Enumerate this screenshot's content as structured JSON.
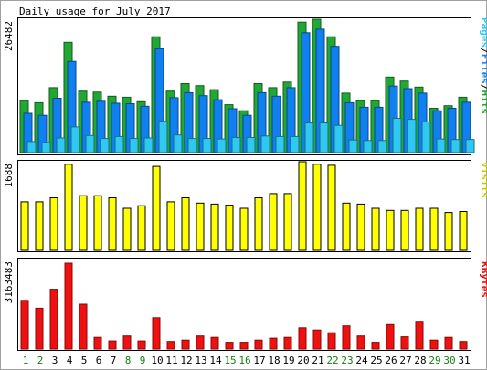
{
  "title": "Daily usage for July 2017",
  "days": [
    "1",
    "2",
    "3",
    "4",
    "5",
    "6",
    "7",
    "8",
    "9",
    "10",
    "11",
    "12",
    "13",
    "14",
    "15",
    "16",
    "17",
    "18",
    "19",
    "20",
    "21",
    "22",
    "23",
    "24",
    "25",
    "26",
    "27",
    "28",
    "29",
    "30",
    "31"
  ],
  "weekend_days": [
    "1",
    "2",
    "8",
    "9",
    "15",
    "16",
    "22",
    "23",
    "29",
    "30"
  ],
  "colors": {
    "background": "#ffffff",
    "frame": "#000000",
    "hits": "#21a834",
    "files": "#1080f0",
    "pages": "#30c8f0",
    "visits": "#ffff00",
    "kbytes": "#f01010",
    "weekday_label": "#000000",
    "weekend_label": "#108010",
    "visits_label": "#c8c800"
  },
  "chart_data": [
    {
      "type": "bar",
      "panel": "hits-files-pages",
      "ymax_label": "26482",
      "ymax": 26482,
      "side_label": [
        "Pages",
        "/",
        "Files",
        "/",
        "Hits"
      ],
      "series": [
        {
          "name": "Hits",
          "color": "#21a834",
          "values": [
            10300,
            9900,
            12900,
            21900,
            12200,
            12000,
            11200,
            11000,
            10100,
            23000,
            12200,
            13700,
            13300,
            12500,
            9500,
            8300,
            13700,
            12900,
            14000,
            25900,
            26482,
            23000,
            11800,
            10300,
            10300,
            15000,
            14200,
            13000,
            8800,
            9300,
            11000
          ]
        },
        {
          "name": "Files",
          "color": "#1080f0",
          "values": [
            7800,
            7400,
            10800,
            18100,
            10000,
            10200,
            9800,
            9700,
            9200,
            20600,
            10900,
            11900,
            11300,
            10500,
            8700,
            7400,
            11900,
            11200,
            12900,
            23800,
            24500,
            21100,
            9900,
            9000,
            9000,
            13200,
            12700,
            11800,
            8300,
            8800,
            10000
          ]
        },
        {
          "name": "Pages",
          "color": "#30c8f0",
          "values": [
            2200,
            2000,
            2900,
            5100,
            3400,
            2800,
            3200,
            2800,
            2900,
            6200,
            3500,
            2800,
            2800,
            2700,
            3000,
            3000,
            3300,
            3200,
            3200,
            5900,
            5900,
            5400,
            2500,
            2400,
            2400,
            6800,
            6600,
            6100,
            2700,
            2600,
            2600
          ]
        }
      ]
    },
    {
      "type": "bar",
      "panel": "visits",
      "ymax_label": "1688",
      "ymax": 1688,
      "side_label": [
        "Visits"
      ],
      "series": [
        {
          "name": "Visits",
          "color": "#ffff00",
          "values": [
            924,
            924,
            1000,
            1640,
            1040,
            1040,
            1000,
            800,
            850,
            1600,
            924,
            1000,
            900,
            880,
            860,
            800,
            1000,
            1080,
            1080,
            1688,
            1640,
            1620,
            900,
            880,
            800,
            760,
            760,
            800,
            800,
            720,
            740
          ]
        }
      ]
    },
    {
      "type": "bar",
      "panel": "kbytes",
      "ymax_label": "3163483",
      "ymax": 3163483,
      "side_label": [
        "KBytes"
      ],
      "series": [
        {
          "name": "KBytes",
          "color": "#f01010",
          "values": [
            1790000,
            1500000,
            2200000,
            3163483,
            1650000,
            430000,
            300000,
            480000,
            300000,
            1150000,
            280000,
            330000,
            480000,
            430000,
            250000,
            250000,
            330000,
            400000,
            430000,
            780000,
            700000,
            600000,
            850000,
            480000,
            250000,
            900000,
            450000,
            1020000,
            330000,
            430000,
            280000
          ]
        }
      ]
    }
  ]
}
